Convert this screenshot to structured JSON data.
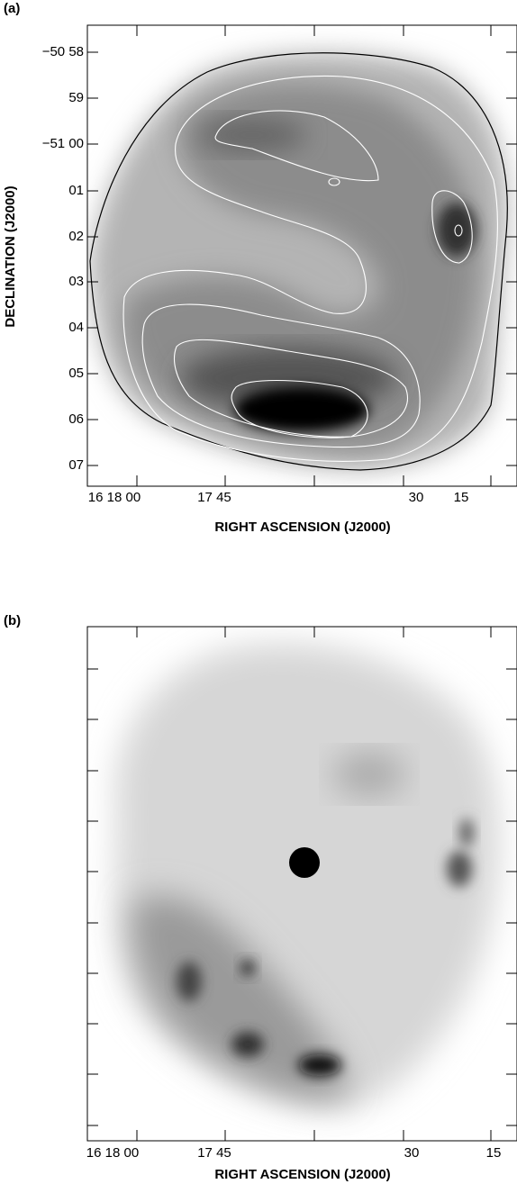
{
  "panel_a": {
    "label": "(a)",
    "y_tick_labels": [
      "−50 58",
      "59",
      "−51 00",
      "01",
      "02",
      "03",
      "04",
      "05",
      "06",
      "07"
    ],
    "x_tick_labels": [
      "16 18 00",
      "17 45",
      "30",
      "15"
    ],
    "y_title": "DECLINATION (J2000)",
    "x_title": "RIGHT ASCENSION (J2000)"
  },
  "panel_b": {
    "label": "(b)",
    "x_tick_labels": [
      "16 18 00",
      "17 45",
      "30",
      "15"
    ],
    "x_title": "RIGHT ASCENSION (J2000)"
  }
}
